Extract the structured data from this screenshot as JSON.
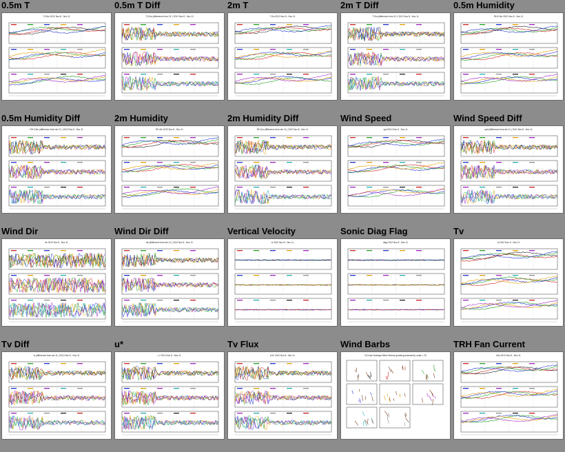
{
  "page": {
    "title": ""
  },
  "tiles": [
    {
      "title": "0.5m T",
      "header": "T.0.5m 2012 Nov 8 - Nov 11"
    },
    {
      "title": "0.5m T Diff",
      "header": "T.0.5m (difference from 31 1 2012 Nov 8 - Nov 11"
    },
    {
      "title": "2m T",
      "header": "T.2m 2012 Nov 8 - Nov 11"
    },
    {
      "title": "2m T Diff",
      "header": "T.2m (difference from 31 1 2012 Nov 8 - Nov 11"
    },
    {
      "title": "0.5m Humidity",
      "header": "RH.0.5m 2012 Nov 8 - Nov 11"
    },
    {
      "title": "0.5m Humidity Diff",
      "header": "RH.0.5m (difference from stn 21 ) 2012 Nov 8 - Nov 11"
    },
    {
      "title": "2m Humidity",
      "header": "RH.2m 2012 Nov 8 - Nov 11"
    },
    {
      "title": "2m Humidity Diff",
      "header": "RH.2m (difference from stn 11 ) 2012 Nov 8 - Nov 11"
    },
    {
      "title": "Wind Speed",
      "header": "spd 2012 Nov 8 - Nov 11"
    },
    {
      "title": "Wind Speed Diff",
      "header": "spd (difference from stn 11 ) 2012 Nov 8 - Nov 11"
    },
    {
      "title": "Wind Dir",
      "header": "dir 2012 Nov 8 - Nov 11"
    },
    {
      "title": "Wind Dir Diff",
      "header": "dir (difference from stn 11 ) 2012 Nov 8 - Nov 11"
    },
    {
      "title": "Vertical Velocity",
      "header": "w 2012 Nov 8 - Nov 11"
    },
    {
      "title": "Sonic Diag Flag",
      "header": "diag 2012 Nov 8 - Nov 11"
    },
    {
      "title": "Tv",
      "header": "tc 2012 Nov 8 - Nov 11"
    },
    {
      "title": "Tv Diff",
      "header": "tc (difference from stn 11 ) 2012 Nov 8 - Nov 11"
    },
    {
      "title": "u*",
      "header": "u* 2012 Nov 8 - Nov 11"
    },
    {
      "title": "Tv Flux",
      "header": "w'tc' 2012 Nov 8 - Nov 11"
    },
    {
      "title": "Wind Barbs",
      "header": "1/2 Hour Average Wind Vectors (pointing downwind), scale = 20"
    },
    {
      "title": "TRH Fan Current",
      "header": "Ifan 2012 Nov 8 - Nov 11"
    }
  ],
  "chart_data": {
    "type": "line",
    "note_type": "thumbnail grid of time-series plots",
    "panels_per_tile": 3,
    "series_colors": [
      "#222222",
      "#d02020",
      "#20a020",
      "#2030d0",
      "#e0a000",
      "#a020c0",
      "#20b0b0",
      "#909090"
    ],
    "axis_color": "#000000",
    "grid": true
  }
}
